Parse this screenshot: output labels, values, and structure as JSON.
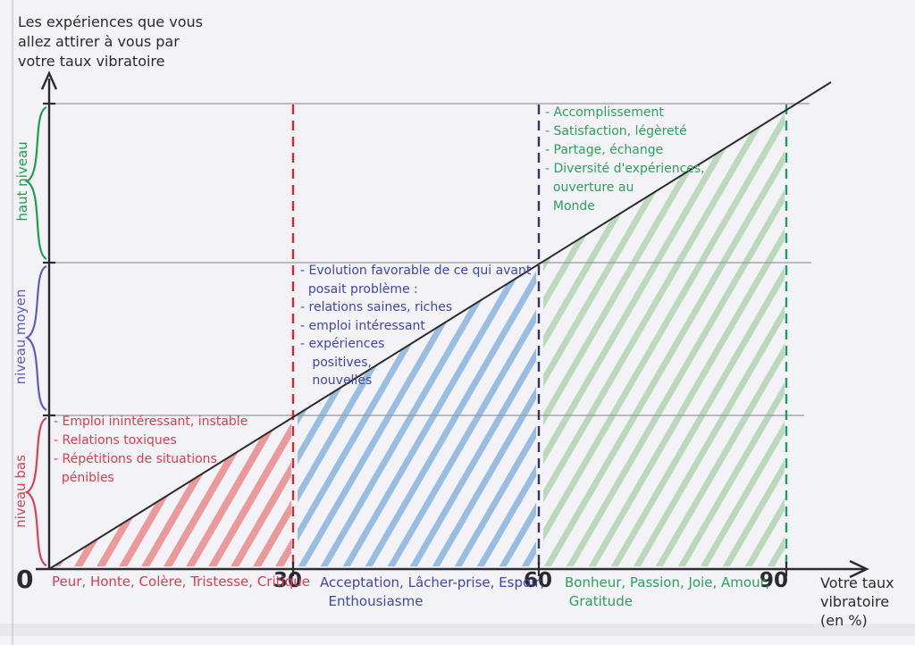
{
  "page": {
    "paper_color": "#f2f2f7",
    "ink_dark": "#2b2a30"
  },
  "y_axis_title": "Les expériences que vous\nallez attirer à vous par\nvotre taux vibratoire",
  "x_axis": {
    "label": "Votre taux\nvibratoire\n(en %)",
    "ticks": {
      "t0": "0",
      "t30": "30",
      "t60": "60",
      "t90": "90"
    }
  },
  "levels": {
    "high": {
      "label": "haut niveau",
      "color": "#1f9e50"
    },
    "mid": {
      "label": "niveau moyen",
      "color": "#5d5dc0"
    },
    "low": {
      "label": "niveau bas",
      "color": "#d84355"
    }
  },
  "zones": {
    "low": {
      "ink": "#d6404f",
      "hatch": "#e55353",
      "dash": "#d42a33",
      "notes": "- Emploi inintéressant, instable\n- Relations toxiques\n- Répétitions de situations\n  pénibles",
      "emotions": "Peur, Honte, Colère, Tristesse, Critique"
    },
    "mid": {
      "ink": "#4247ad",
      "hatch": "#4189cc",
      "dash": "#33335c",
      "notes": "- Evolution favorable de ce qui avant\n  posait problème :\n- relations saines, riches\n- emploi intéressant\n- expériences\n   positives,\n   nouvelles",
      "emotions": "Acceptation, Lâcher-prise, Espoir,\n  Enthousiasme"
    },
    "high": {
      "ink": "#2da05e",
      "hatch": "#85bf85",
      "dash": "#1f9e62",
      "notes": "- Accomplissement\n- Satisfaction, légèreté\n- Partage, échange\n- Diversité d'expériences,\n  ouverture au\n  Monde",
      "emotions": "Bonheur, Passion, Joie, Amour,\n Gratitude"
    }
  },
  "chart_data": {
    "type": "area",
    "title": "Les expériences que vous allez attirer à vous par votre taux vibratoire",
    "xlabel": "Votre taux vibratoire (en %)",
    "x_ticks": [
      0,
      30,
      60,
      90
    ],
    "xlim": [
      0,
      100
    ],
    "grid": true,
    "diagonal_line": {
      "from": [
        0,
        0
      ],
      "to": [
        95,
        95
      ],
      "meaning": "les expériences attirées croissent linéairement avec le taux vibratoire"
    },
    "y_levels": [
      "niveau bas",
      "niveau moyen",
      "haut niveau"
    ],
    "zones": [
      {
        "x_range": [
          0,
          30
        ],
        "level": "niveau bas",
        "color": "red",
        "emotions": [
          "Peur",
          "Honte",
          "Colère",
          "Tristesse",
          "Critique"
        ],
        "experiences": [
          "Emploi inintéressant, instable",
          "Relations toxiques",
          "Répétitions de situations pénibles"
        ]
      },
      {
        "x_range": [
          30,
          60
        ],
        "level": "niveau moyen",
        "color": "blue",
        "emotions": [
          "Acceptation",
          "Lâcher-prise",
          "Espoir",
          "Enthousiasme"
        ],
        "experiences": [
          "Evolution favorable de ce qui avant posait problème :",
          "relations saines, riches",
          "emploi intéressant",
          "expériences positives, nouvelles"
        ]
      },
      {
        "x_range": [
          60,
          90
        ],
        "level": "haut niveau",
        "color": "green",
        "emotions": [
          "Bonheur",
          "Passion",
          "Joie",
          "Amour",
          "Gratitude"
        ],
        "experiences": [
          "Accomplissement",
          "Satisfaction, légèreté",
          "Partage, échange",
          "Diversité d'expériences, ouverture au Monde"
        ]
      }
    ]
  }
}
